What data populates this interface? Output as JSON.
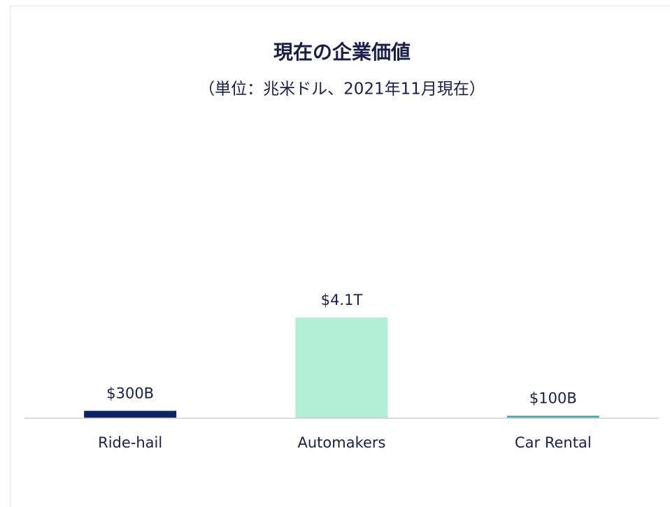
{
  "chart_data": {
    "type": "bar",
    "title": "現在の企業価値",
    "subtitle": "（単位：兆米ドル、2021年11月現在）",
    "categories": [
      "Ride-hail",
      "Automakers",
      "Car Rental"
    ],
    "values": [
      0.3,
      4.1,
      0.1
    ],
    "value_labels": [
      "$300B",
      "$4.1T",
      "$100B"
    ],
    "colors": [
      "#0b2265",
      "#b3efd6",
      "#4aa5a8"
    ],
    "ylim": [
      0,
      12
    ]
  }
}
